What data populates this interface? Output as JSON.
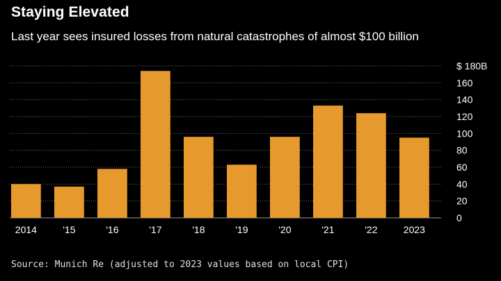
{
  "title": "Staying Elevated",
  "subtitle": "Last year sees insured losses from natural catastrophes of almost $100 billion",
  "source": "Source: Munich Re (adjusted to 2023 values based on local CPI)",
  "colors": {
    "background": "#000000",
    "bar": "#e69a2d",
    "grid": "#6e6e6e",
    "text": "#ffffff"
  },
  "chart_data": {
    "type": "bar",
    "categories": [
      "2014",
      "'15",
      "'16",
      "'17",
      "'18",
      "'19",
      "'20",
      "'21",
      "'22",
      "2023"
    ],
    "values": [
      40,
      37,
      58,
      174,
      96,
      63,
      96,
      133,
      124,
      95
    ],
    "ylim": [
      0,
      180
    ],
    "yticks": [
      0,
      20,
      40,
      60,
      80,
      100,
      120,
      140,
      160,
      180
    ],
    "ytick_labels": [
      "0",
      "20",
      "40",
      "60",
      "80",
      "100",
      "120",
      "140",
      "160",
      "$ 180B"
    ],
    "grid": true,
    "y_axis_position": "right"
  }
}
